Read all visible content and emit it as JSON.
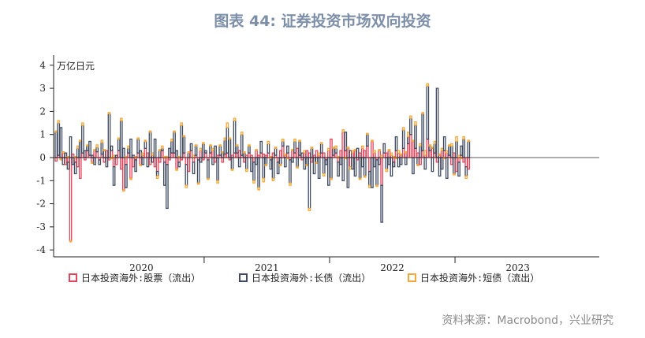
{
  "title": "图表 44: 证券投资市场双向投资",
  "source": "资料来源：Macrobond，兴业研究",
  "chart_data": {
    "type": "bar",
    "stacked": true,
    "unit_label": "万亿日元",
    "ylim": [
      -4.3,
      4.3
    ],
    "yticks": [
      -4,
      -3,
      -2,
      -1,
      0,
      1,
      2,
      3,
      4
    ],
    "xticks": [
      {
        "label": "2020",
        "x": 2020.0
      },
      {
        "label": "2021",
        "x": 2021.0
      },
      {
        "label": "2022",
        "x": 2022.0
      },
      {
        "label": "2023",
        "x": 2023.0
      }
    ],
    "x_range": [
      2019.3,
      2023.65
    ],
    "frequency": "weekly",
    "start": 2019.32,
    "legend_position": "bottom",
    "series": [
      {
        "name": "日本投资海外:股票（流出）",
        "color": "#e0475e",
        "values": [
          -0.15,
          0.1,
          -0.05,
          0.2,
          -0.3,
          -0.2,
          -3.6,
          0.15,
          -0.2,
          -0.4,
          -0.9,
          0.2,
          -0.1,
          0.3,
          0.1,
          -0.2,
          0.3,
          0.25,
          -0.1,
          0.15,
          -0.2,
          0.3,
          -0.1,
          0.3,
          -0.4,
          -0.3,
          0.3,
          -0.5,
          -1.4,
          -0.3,
          0.2,
          -0.9,
          -0.4,
          -0.1,
          0.2,
          -0.3,
          0.1,
          0.4,
          0.2,
          -0.3,
          0.1,
          -0.4,
          -0.6,
          -0.2,
          0.3,
          -0.2,
          -0.3,
          -0.1,
          0.2,
          0.2,
          -0.5,
          -0.2,
          -0.1,
          0.2,
          -0.3,
          -0.6,
          0.3,
          -0.2,
          0.1,
          -0.1,
          0.3,
          -0.1,
          0.2,
          -0.1,
          0.2,
          0.3,
          -0.2,
          0.1,
          0.1,
          -0.2,
          0.15,
          0.2,
          -0.1,
          0.1,
          0.2,
          0.2,
          0.3,
          0.1,
          -0.2,
          0.1,
          0.2,
          0.1,
          -0.2,
          0.3,
          0.1,
          0.2,
          0.15,
          0.1,
          0.2,
          -0.1,
          0.2,
          0.1,
          -0.2,
          0.3,
          0.5,
          0.1,
          0.2,
          -0.1,
          0.3,
          0.2,
          0.4,
          0.1,
          -0.1,
          0.2,
          0.3,
          0.2,
          -0.2,
          0.1,
          0.3,
          0.1,
          0.2,
          0.2,
          -0.1,
          0.3,
          0.8,
          0.1,
          0.2,
          -0.2,
          0.3,
          1.1,
          0.3,
          0.4,
          -0.4,
          0.2,
          0.3,
          -0.1,
          0.2,
          0.4,
          0.3,
          0.5,
          -0.6,
          0.7,
          0.2,
          -0.1,
          0.3,
          -1.2,
          0.2,
          0.2,
          0.3,
          0.1,
          -0.2,
          0.3,
          0.2,
          0.1,
          0.4,
          0.2,
          0.6,
          1.0,
          0.7,
          0.4,
          0.2,
          -0.3,
          0.3,
          0.1,
          0.8,
          0.3,
          0.4,
          0.2,
          -0.2,
          0.1,
          0.3,
          0.3,
          0.2,
          0.1,
          -0.3,
          0.2,
          -0.6,
          -0.2,
          0.1,
          -0.2,
          -0.4,
          -0.5
        ]
      },
      {
        "name": "日本投资海外:长债（流出）",
        "color": "#3f4a60",
        "values": [
          1.1,
          1.4,
          1.3,
          -0.3,
          0.2,
          -0.3,
          0.9,
          -0.3,
          -0.5,
          0.4,
          0.7,
          1.2,
          0.3,
          0.2,
          0.6,
          0.1,
          -0.3,
          0.2,
          -0.2,
          0.5,
          0.3,
          -0.4,
          1.9,
          0.2,
          -0.8,
          0.1,
          0.5,
          1.6,
          0.4,
          -1.0,
          0.2,
          0.8,
          0.1,
          -0.5,
          0.6,
          0.3,
          -0.3,
          0.3,
          -0.4,
          1.1,
          -0.2,
          0.8,
          -0.2,
          0.3,
          0.1,
          -1.0,
          -1.9,
          0.4,
          0.5,
          0.9,
          0.3,
          -0.2,
          1.4,
          0.7,
          -0.9,
          0.2,
          0.3,
          -0.5,
          0.4,
          -1.0,
          -0.2,
          0.6,
          0.1,
          -0.8,
          0.3,
          -0.3,
          0.5,
          -1.0,
          0.4,
          0.2,
          0.6,
          1.1,
          0.8,
          -0.5,
          1.4,
          0.3,
          -0.4,
          0.9,
          0.2,
          -0.5,
          0.3,
          -0.6,
          -0.8,
          -0.3,
          -1.3,
          0.5,
          -0.9,
          -0.3,
          0.4,
          -0.4,
          -0.9,
          0.3,
          -0.5,
          -0.3,
          0.2,
          -0.4,
          0.3,
          -1.0,
          -0.2,
          0.5,
          -0.4,
          0.6,
          0.2,
          -0.5,
          -0.3,
          -2.2,
          0.4,
          -0.7,
          -0.2,
          -0.9,
          0.4,
          -0.7,
          -0.2,
          -1.2,
          -0.9,
          0.3,
          0.2,
          -0.6,
          -0.3,
          -1.0,
          0.8,
          -1.3,
          0.3,
          -0.5,
          -0.8,
          0.4,
          -0.9,
          -0.4,
          -0.8,
          0.5,
          -0.6,
          -1.3,
          -0.4,
          -1.1,
          -0.3,
          -1.6,
          0.4,
          -0.5,
          -0.3,
          -0.8,
          -0.2,
          0.6,
          -0.4,
          -0.3,
          0.8,
          -0.3,
          0.3,
          0.7,
          -0.7,
          1.0,
          -0.3,
          0.5,
          1.6,
          -0.5,
          2.3,
          0.2,
          -0.6,
          0.4,
          3.0,
          -0.8,
          -0.5,
          0.6,
          -0.9,
          0.4,
          0.5,
          -0.7,
          0.7,
          -0.6,
          0.4,
          0.8,
          -0.4,
          0.7,
          -1.5,
          -0.3,
          -0.9
        ]
      },
      {
        "name": "日本投资海外:短债（流出）",
        "color": "#f2a93b",
        "values": [
          0.05,
          0.1,
          -0.05,
          0.05,
          0.0,
          0.05,
          -0.05,
          0.0,
          0.05,
          0.1,
          0.05,
          0.1,
          0.0,
          0.05,
          0.0,
          -0.05,
          0.05,
          0.1,
          0.0,
          0.1,
          0.05,
          0.0,
          0.05,
          -0.05,
          0.1,
          0.0,
          0.05,
          0.1,
          -0.05,
          0.05,
          0.1,
          -0.05,
          0.0,
          0.05,
          0.05,
          -0.05,
          0.1,
          0.05,
          0.0,
          0.05,
          0.1,
          0.0,
          -0.1,
          0.05,
          0.1,
          0.05,
          0.05,
          0.0,
          0.1,
          0.05,
          -0.05,
          0.05,
          0.1,
          0.05,
          -0.1,
          0.05,
          0.0,
          0.1,
          0.05,
          -0.05,
          0.1,
          0.05,
          0.0,
          -0.05,
          0.05,
          0.1,
          0.0,
          -0.1,
          0.05,
          0.05,
          0.1,
          0.2,
          0.05,
          -0.05,
          0.1,
          0.05,
          0.0,
          0.1,
          0.05,
          -0.1,
          0.05,
          0.0,
          -0.1,
          0.05,
          -0.1,
          0.0,
          -0.15,
          -0.05,
          0.1,
          0.05,
          -0.1,
          0.05,
          0.0,
          -0.05,
          0.1,
          0.05,
          -0.05,
          -0.1,
          0.05,
          0.1,
          -0.05,
          0.05,
          0.0,
          0.1,
          -0.05,
          -0.1,
          0.05,
          0.0,
          -0.05,
          0.1,
          0.05,
          -0.1,
          0.0,
          0.1,
          -0.05,
          0.05,
          0.1,
          0.05,
          0.0,
          0.1,
          -0.05,
          0.05,
          -0.1,
          0.1,
          0.05,
          0.0,
          -0.05,
          0.1,
          -0.05,
          0.05,
          -0.1,
          0.05,
          0.1,
          -0.05,
          0.05,
          0.1,
          0.0,
          -0.1,
          0.05,
          0.1,
          0.05,
          -0.05,
          0.1,
          0.05,
          0.1,
          0.05,
          0.2,
          0.1,
          0.05,
          0.15,
          -0.05,
          0.1,
          0.05,
          0.2,
          0.1,
          0.05,
          0.05,
          0.1,
          0.0,
          0.05,
          0.1,
          -0.05,
          0.1,
          0.05,
          0.1,
          -0.05,
          0.2,
          0.1,
          -0.05,
          0.1,
          -0.1,
          0.05,
          -0.1
        ]
      }
    ]
  }
}
